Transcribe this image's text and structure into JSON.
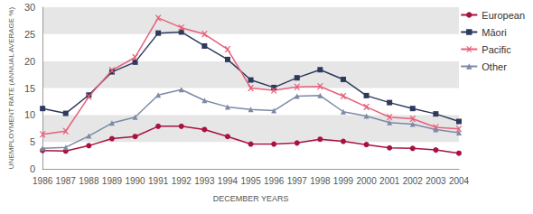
{
  "chart_data": {
    "type": "line",
    "x_label": "DECEMBER YEARS",
    "y_label": "UNEMPLOYMENT RATE (ANNUAL AVERAGE %)",
    "categories": [
      "1986",
      "1987",
      "1988",
      "1989",
      "1990",
      "1991",
      "1992",
      "1993",
      "1994",
      "1995",
      "1996",
      "1997",
      "1998",
      "1999",
      "2000",
      "2001",
      "2002",
      "2003",
      "2004"
    ],
    "series": [
      {
        "name": "European",
        "color": "#a8123e",
        "marker": "circle",
        "values": [
          3.4,
          3.3,
          4.3,
          5.6,
          6.0,
          7.9,
          7.9,
          7.3,
          6.0,
          4.6,
          4.6,
          4.8,
          5.5,
          5.1,
          4.5,
          3.9,
          3.8,
          3.5,
          2.9
        ]
      },
      {
        "name": "Māori",
        "color": "#2d3a5c",
        "marker": "square",
        "values": [
          11.2,
          10.3,
          13.7,
          18.0,
          19.8,
          25.2,
          25.4,
          22.8,
          20.3,
          16.5,
          15.1,
          16.9,
          18.4,
          16.6,
          13.6,
          12.3,
          11.2,
          10.2,
          8.8
        ]
      },
      {
        "name": "Pacific",
        "color": "#e8607a",
        "marker": "x",
        "values": [
          6.4,
          7.0,
          13.4,
          18.3,
          20.7,
          28.0,
          26.2,
          25.0,
          22.2,
          15.0,
          14.6,
          15.2,
          15.3,
          13.5,
          11.5,
          9.6,
          9.3,
          7.7,
          7.4
        ]
      },
      {
        "name": "Other",
        "color": "#7b8aa6",
        "marker": "triangle",
        "values": [
          3.8,
          4.0,
          6.1,
          8.5,
          9.6,
          13.7,
          14.7,
          12.7,
          11.5,
          11.0,
          10.8,
          13.5,
          13.6,
          10.6,
          9.8,
          8.6,
          8.3,
          7.3,
          6.7
        ]
      }
    ],
    "ylim": [
      0,
      30
    ],
    "yticks": [
      0,
      5,
      10,
      15,
      20,
      25,
      30
    ],
    "grid": true,
    "legend": "top-right"
  }
}
